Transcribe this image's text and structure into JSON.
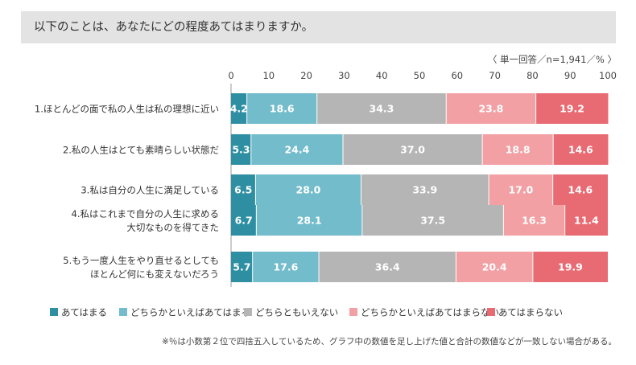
{
  "page": {
    "title": "以下のことは、あなたにどの程度あてはまりますか。",
    "footnote": "※％は小数第２位で四捨五入しているため、グラフ中の数値を足し上げた値と合計の数値などが一致しない場合がある。"
  },
  "chart_data": {
    "type": "bar",
    "orientation": "horizontal",
    "stacked": true,
    "title": "以下のことは、あなたにどの程度あてはまりますか。",
    "note": "〈 単一回答／n=1,941／% 〉",
    "xlim": [
      0,
      100
    ],
    "ticks": [
      "0",
      "10",
      "20",
      "30",
      "40",
      "50",
      "60",
      "70",
      "80",
      "90",
      "100"
    ],
    "categories": [
      [
        "1.ほとんどの面で私の人生は私の理想に近い"
      ],
      [
        "2.私の人生はとても素晴らしい状態だ"
      ],
      [
        "3.私は自分の人生に満足している"
      ],
      [
        "4.私はこれまで自分の人生に求める",
        "大切なものを得てきた"
      ],
      [
        "5.もう一度人生をやり直せるとしても",
        "ほとんど何にも変えないだろう"
      ]
    ],
    "series": [
      {
        "name": "あてはまる",
        "color": "#2e8fa3",
        "values": [
          4.2,
          5.3,
          6.5,
          6.7,
          5.7
        ]
      },
      {
        "name": "どちらかといえばあてはまる",
        "color": "#73bccb",
        "values": [
          18.6,
          24.4,
          28.0,
          28.1,
          17.6
        ]
      },
      {
        "name": "どちらともいえない",
        "color": "#b5b5b5",
        "values": [
          34.3,
          37.0,
          33.9,
          37.5,
          36.4
        ]
      },
      {
        "name": "どちらかといえばあてはまらない",
        "color": "#f2a0a4",
        "values": [
          23.8,
          18.8,
          17.0,
          16.3,
          20.4
        ]
      },
      {
        "name": "あてはまらない",
        "color": "#e86a72",
        "values": [
          19.2,
          14.6,
          14.6,
          11.4,
          19.9
        ]
      }
    ],
    "labels": [
      [
        "4.2",
        "18.6",
        "34.3",
        "23.8",
        "19.2"
      ],
      [
        "5.3",
        "24.4",
        "37.0",
        "18.8",
        "14.6"
      ],
      [
        "6.5",
        "28.0",
        "33.9",
        "17.0",
        "14.6"
      ],
      [
        "6.7",
        "28.1",
        "37.5",
        "16.3",
        "11.4"
      ],
      [
        "5.7",
        "17.6",
        "36.4",
        "20.4",
        "19.9"
      ]
    ],
    "legend_position": "bottom"
  }
}
